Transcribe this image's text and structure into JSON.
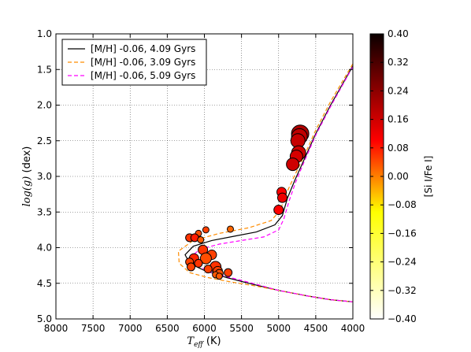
{
  "chart_data": {
    "type": "scatter",
    "title": "",
    "xlabel": {
      "symbol": "T",
      "subscript": "eff",
      "unit": " (K)"
    },
    "ylabel": {
      "symbol": "log(g)",
      "unit": " (dex)"
    },
    "xlim": [
      8000,
      4000
    ],
    "ylim": [
      1.0,
      5.0
    ],
    "x_inverted": true,
    "y_inverted": true,
    "xticks": [
      8000,
      7500,
      7000,
      6500,
      6000,
      5500,
      5000,
      4500,
      4000
    ],
    "xtick_labels": [
      "8000",
      "7500",
      "7000",
      "6500",
      "6000",
      "5500",
      "5000",
      "4500",
      "4000"
    ],
    "yticks": [
      1.0,
      1.5,
      2.0,
      2.5,
      3.0,
      3.5,
      4.0,
      4.5,
      5.0
    ],
    "ytick_labels": [
      "1.0",
      "1.5",
      "2.0",
      "2.5",
      "3.0",
      "3.5",
      "4.0",
      "4.5",
      "5.0"
    ],
    "grid": true,
    "legend_position": "top-left",
    "colorbar": {
      "label": "[Si I/Fe I]",
      "range": [
        -0.4,
        0.4
      ],
      "ticks": [
        "0.40",
        "0.32",
        "0.24",
        "0.16",
        "0.08",
        "0.00",
        "−0.08",
        "−0.16",
        "−0.24",
        "−0.32",
        "−0.40"
      ],
      "colormap": "hot_r"
    },
    "series": [
      {
        "name": "[M/H] -0.06, 4.09 Gyrs",
        "style": "solid",
        "color": "#000000",
        "x": [
          4000,
          4300,
          4500,
          4650,
          4780,
          4880,
          4950,
          5050,
          5300,
          5600,
          5900,
          6150,
          6260,
          6200,
          6000,
          5700,
          5400,
          5000,
          4600,
          4300,
          4000
        ],
        "y": [
          1.45,
          2.0,
          2.4,
          2.75,
          3.05,
          3.3,
          3.55,
          3.68,
          3.78,
          3.84,
          3.9,
          3.98,
          4.1,
          4.22,
          4.32,
          4.42,
          4.5,
          4.6,
          4.68,
          4.73,
          4.76
        ]
      },
      {
        "name": "[M/H] -0.06, 3.09 Gyrs",
        "style": "dashed",
        "color": "#ff8c00",
        "x": [
          4000,
          4300,
          4500,
          4650,
          4790,
          4900,
          4980,
          5100,
          5400,
          5800,
          6150,
          6350,
          6340,
          6200,
          5950,
          5650,
          5350,
          5000,
          4600,
          4300,
          4000
        ],
        "y": [
          1.42,
          1.95,
          2.35,
          2.7,
          3.0,
          3.25,
          3.48,
          3.62,
          3.72,
          3.8,
          3.9,
          4.05,
          4.22,
          4.35,
          4.42,
          4.48,
          4.53,
          4.6,
          4.68,
          4.73,
          4.76
        ]
      },
      {
        "name": "[M/H] -0.06, 5.09 Gyrs",
        "style": "dashed",
        "color": "#ff00ff",
        "x": [
          4000,
          4300,
          4500,
          4650,
          4770,
          4860,
          4930,
          5000,
          5200,
          5500,
          5800,
          6050,
          6180,
          6100,
          5900,
          5650,
          5350,
          5000,
          4600,
          4300,
          4000
        ],
        "y": [
          1.46,
          2.02,
          2.42,
          2.78,
          3.08,
          3.35,
          3.6,
          3.75,
          3.85,
          3.9,
          3.95,
          4.02,
          4.12,
          4.25,
          4.35,
          4.42,
          4.5,
          4.6,
          4.68,
          4.73,
          4.76
        ]
      }
    ],
    "points": [
      {
        "teff": 4710,
        "logg": 2.4,
        "size": 11,
        "c": 0.2
      },
      {
        "teff": 4720,
        "logg": 2.44,
        "size": 10,
        "c": 0.18
      },
      {
        "teff": 4740,
        "logg": 2.5,
        "size": 9,
        "c": 0.17
      },
      {
        "teff": 4730,
        "logg": 2.67,
        "size": 9,
        "c": 0.16
      },
      {
        "teff": 4760,
        "logg": 2.72,
        "size": 8,
        "c": 0.15
      },
      {
        "teff": 4810,
        "logg": 2.83,
        "size": 8,
        "c": 0.16
      },
      {
        "teff": 4960,
        "logg": 3.22,
        "size": 6,
        "c": 0.1
      },
      {
        "teff": 4950,
        "logg": 3.3,
        "size": 6,
        "c": 0.12
      },
      {
        "teff": 5000,
        "logg": 3.47,
        "size": 6,
        "c": 0.1
      },
      {
        "teff": 5650,
        "logg": 3.74,
        "size": 4,
        "c": 0.02
      },
      {
        "teff": 5980,
        "logg": 3.75,
        "size": 4,
        "c": 0.05
      },
      {
        "teff": 6080,
        "logg": 3.8,
        "size": 4,
        "c": 0.04
      },
      {
        "teff": 6200,
        "logg": 3.86,
        "size": 5,
        "c": 0.06
      },
      {
        "teff": 6130,
        "logg": 3.86,
        "size": 5,
        "c": 0.08
      },
      {
        "teff": 6050,
        "logg": 3.89,
        "size": 4,
        "c": 0.03
      },
      {
        "teff": 6020,
        "logg": 4.03,
        "size": 6,
        "c": 0.06
      },
      {
        "teff": 5900,
        "logg": 4.1,
        "size": 6,
        "c": 0.05
      },
      {
        "teff": 5980,
        "logg": 4.15,
        "size": 7,
        "c": 0.04
      },
      {
        "teff": 6140,
        "logg": 4.15,
        "size": 6,
        "c": 0.07
      },
      {
        "teff": 6200,
        "logg": 4.2,
        "size": 5,
        "c": 0.05
      },
      {
        "teff": 6080,
        "logg": 4.22,
        "size": 5,
        "c": 0.06
      },
      {
        "teff": 6180,
        "logg": 4.27,
        "size": 5,
        "c": 0.05
      },
      {
        "teff": 5850,
        "logg": 4.27,
        "size": 7,
        "c": 0.06
      },
      {
        "teff": 5950,
        "logg": 4.3,
        "size": 5,
        "c": 0.05
      },
      {
        "teff": 5820,
        "logg": 4.33,
        "size": 6,
        "c": 0.05
      },
      {
        "teff": 5800,
        "logg": 4.36,
        "size": 5,
        "c": 0.04
      },
      {
        "teff": 5680,
        "logg": 4.35,
        "size": 5,
        "c": 0.05
      },
      {
        "teff": 5850,
        "logg": 4.38,
        "size": 4,
        "c": 0.03
      },
      {
        "teff": 5800,
        "logg": 4.4,
        "size": 4,
        "c": 0.03
      }
    ]
  }
}
